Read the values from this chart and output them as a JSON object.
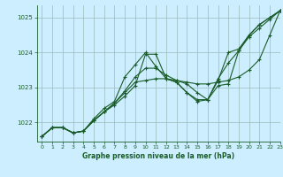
{
  "title": "Graphe pression niveau de la mer (hPa)",
  "background_color": "#cceeff",
  "grid_color": "#99bbbb",
  "line_color": "#1a5c28",
  "xlim": [
    -0.5,
    23
  ],
  "ylim": [
    1021.45,
    1025.35
  ],
  "yticks": [
    1022,
    1023,
    1024,
    1025
  ],
  "xticks": [
    0,
    1,
    2,
    3,
    4,
    5,
    6,
    7,
    8,
    9,
    10,
    11,
    12,
    13,
    14,
    15,
    16,
    17,
    18,
    19,
    20,
    21,
    22,
    23
  ],
  "series": [
    [
      1021.6,
      1021.85,
      1021.85,
      1021.7,
      1021.75,
      1022.05,
      1022.3,
      1022.5,
      1022.75,
      1023.05,
      1023.95,
      1023.95,
      1023.25,
      1023.15,
      1022.85,
      1022.6,
      1022.65,
      1023.05,
      1023.1,
      1024.05,
      1024.45,
      1024.7,
      1024.95,
      1025.2
    ],
    [
      1021.6,
      1021.85,
      1021.85,
      1021.7,
      1021.75,
      1022.05,
      1022.3,
      1022.55,
      1022.85,
      1023.15,
      1023.2,
      1023.25,
      1023.25,
      1023.2,
      1023.15,
      1023.1,
      1023.1,
      1023.15,
      1023.2,
      1023.3,
      1023.5,
      1023.8,
      1024.5,
      1025.2
    ],
    [
      1021.6,
      1021.85,
      1021.85,
      1021.7,
      1021.75,
      1022.05,
      1022.3,
      1022.55,
      1022.9,
      1023.3,
      1023.55,
      1023.55,
      1023.35,
      1023.2,
      1023.1,
      1022.85,
      1022.65,
      1023.2,
      1024.0,
      1024.1,
      1024.5,
      1024.8,
      1025.0,
      1025.2
    ],
    [
      1021.6,
      1021.85,
      1021.85,
      1021.7,
      1021.75,
      1022.1,
      1022.4,
      1022.6,
      1023.3,
      1023.65,
      1024.0,
      1023.6,
      1023.25,
      1023.15,
      1022.85,
      1022.65,
      1022.65,
      1023.25,
      1023.7,
      1024.05,
      1024.5,
      1024.8,
      1025.0,
      1025.2
    ]
  ]
}
